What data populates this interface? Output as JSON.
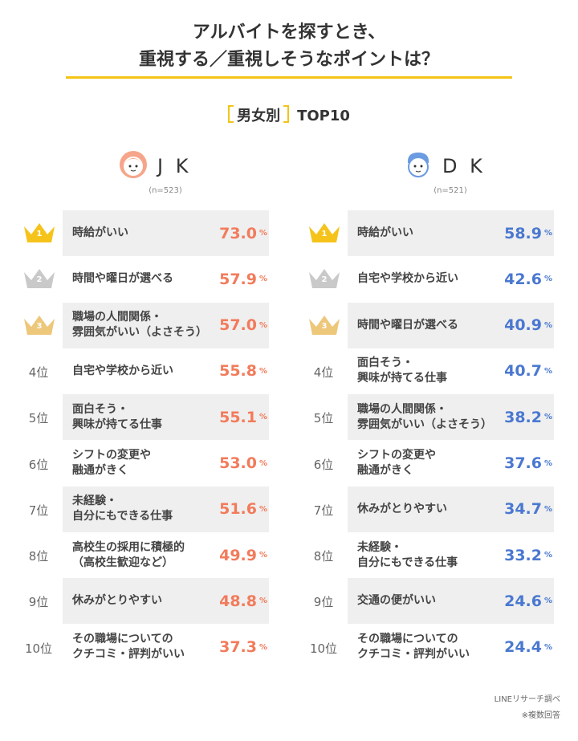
{
  "header": {
    "title_lines": [
      "アルバイトを探すとき、",
      "重視する／重視しそうなポイントは？"
    ],
    "subtitle": {
      "label": "男女別",
      "suffix": "TOP10"
    }
  },
  "ranks": [
    "1",
    "2",
    "3",
    "4位",
    "5位",
    "6位",
    "7位",
    "8位",
    "9位",
    "10位"
  ],
  "unit": "%",
  "groups": [
    {
      "name": "J K",
      "n": "(n=523)",
      "color": "#f27b5b",
      "items": [
        "時給がいい",
        "時間や曜日が選べる",
        "職場の人間関係・\n雰囲気がいい（よさそう）",
        "自宅や学校から近い",
        "面白そう・\n興味が持てる仕事",
        "シフトの変更や\n融通がきく",
        "未経験・\n自分にもできる仕事",
        "高校生の採用に積極的\n（高校生歓迎など）",
        "休みがとりやすい",
        "その職場についての\nクチコミ・評判がいい"
      ],
      "values": [
        "73.0",
        "57.9",
        "57.0",
        "55.8",
        "55.1",
        "53.0",
        "51.6",
        "49.9",
        "48.8",
        "37.3"
      ]
    },
    {
      "name": "D K",
      "n": "(n=521)",
      "color": "#4a78d0",
      "items": [
        "時給がいい",
        "自宅や学校から近い",
        "時間や曜日が選べる",
        "面白そう・\n興味が持てる仕事",
        "職場の人間関係・\n雰囲気がいい（よさそう）",
        "シフトの変更や\n融通がきく",
        "休みがとりやすい",
        "未経験・\n自分にもできる仕事",
        "交通の便がいい",
        "その職場についての\nクチコミ・評判がいい"
      ],
      "values": [
        "58.9",
        "42.6",
        "40.9",
        "40.7",
        "38.2",
        "37.6",
        "34.7",
        "33.2",
        "24.6",
        "24.4"
      ]
    }
  ],
  "footer": [
    "LINEリサーチ調べ",
    "※複数回答"
  ]
}
